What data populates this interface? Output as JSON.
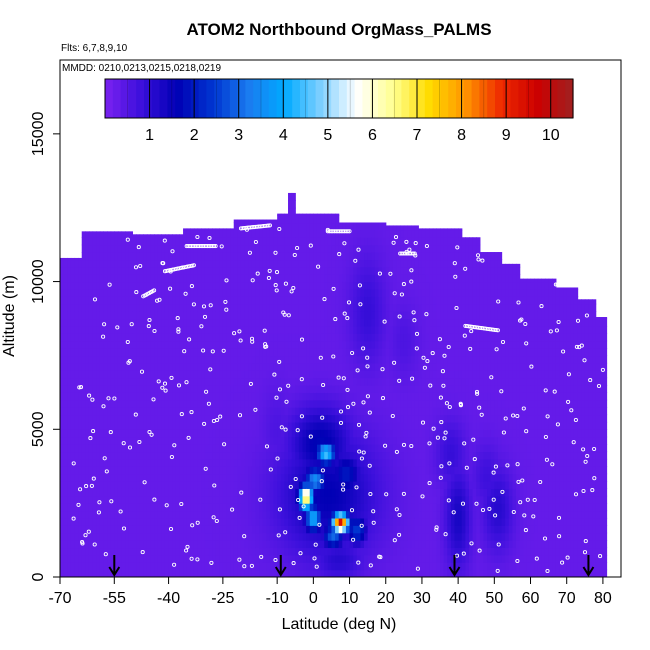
{
  "chart_data": {
    "type": "heatmap",
    "title": "ATOM2 Northbound OrgMass_PALMS",
    "flights_note": "Flts: 6,7,8,9,10",
    "dates_note": "MMDD: 0210,0213,0215,0218,0219",
    "xlabel": "Latitude (deg N)",
    "ylabel": "Altitude (m)",
    "xlim": [
      -70,
      85
    ],
    "ylim": [
      0,
      17500
    ],
    "x_ticks": [
      "-70",
      "-55",
      "-40",
      "-25",
      "-10",
      "0",
      "10",
      "20",
      "30",
      "40",
      "50",
      "60",
      "70",
      "80"
    ],
    "y_ticks": [
      "0",
      "5000",
      "10000",
      "15000"
    ],
    "colorbar": {
      "ticks": [
        "1",
        "2",
        "3",
        "4",
        "5",
        "6",
        "7",
        "8",
        "9",
        "10"
      ],
      "range": [
        0,
        10.5
      ],
      "colors": [
        "#7b22f0",
        "#3c10dc",
        "#0000b4",
        "#0035d0",
        "#1a7cf0",
        "#00aaff",
        "#7fd0ff",
        "#ffffff",
        "#ffff90",
        "#ffdc00",
        "#ff9600",
        "#ee2a00",
        "#cc0000",
        "#a02020"
      ]
    },
    "background_value": 0.3,
    "ceiling": [
      [
        -70,
        10800
      ],
      [
        -64,
        10800
      ],
      [
        -64,
        11700
      ],
      [
        -50,
        11700
      ],
      [
        -50,
        11600
      ],
      [
        -36,
        11600
      ],
      [
        -36,
        11800
      ],
      [
        -22,
        11800
      ],
      [
        -22,
        12100
      ],
      [
        -10,
        12100
      ],
      [
        -10,
        12300
      ],
      [
        -7,
        12300
      ],
      [
        -7,
        13000
      ],
      [
        -5,
        13000
      ],
      [
        -5,
        12300
      ],
      [
        7,
        12300
      ],
      [
        7,
        12000
      ],
      [
        20,
        12000
      ],
      [
        20,
        11900
      ],
      [
        29,
        11900
      ],
      [
        29,
        11800
      ],
      [
        41,
        11800
      ],
      [
        41,
        11500
      ],
      [
        46,
        11500
      ],
      [
        46,
        11000
      ],
      [
        52,
        11000
      ],
      [
        52,
        10600
      ],
      [
        57,
        10600
      ],
      [
        57,
        10100
      ],
      [
        67,
        10100
      ],
      [
        67,
        9800
      ],
      [
        73,
        9800
      ],
      [
        73,
        9400
      ],
      [
        78,
        9400
      ],
      [
        78,
        8800
      ],
      [
        81,
        8800
      ],
      [
        81,
        0
      ]
    ],
    "plumes": [
      {
        "lat": 3.5,
        "alt": 4200,
        "lat_sd": 1.8,
        "alt_sd": 260,
        "value": 4.6
      },
      {
        "lat": 0.5,
        "alt": 3300,
        "lat_sd": 2.0,
        "alt_sd": 300,
        "value": 3.6
      },
      {
        "lat": -2.0,
        "alt": 2700,
        "lat_sd": 1.4,
        "alt_sd": 300,
        "value": 7.2
      },
      {
        "lat": 0.0,
        "alt": 2000,
        "lat_sd": 1.6,
        "alt_sd": 300,
        "value": 4.2
      },
      {
        "lat": 7.5,
        "alt": 1850,
        "lat_sd": 1.6,
        "alt_sd": 220,
        "value": 9.5
      },
      {
        "lat": 5.5,
        "alt": 1400,
        "lat_sd": 2.0,
        "alt_sd": 280,
        "value": 3.0
      },
      {
        "lat": 12.0,
        "alt": 1600,
        "lat_sd": 2.0,
        "alt_sd": 350,
        "value": 2.5
      },
      {
        "lat": 9.0,
        "alt": 3500,
        "lat_sd": 3.0,
        "alt_sd": 500,
        "value": 2.0
      },
      {
        "lat": 2.0,
        "alt": 4500,
        "lat_sd": 6.0,
        "alt_sd": 900,
        "value": 1.7
      },
      {
        "lat": 4.0,
        "alt": 2800,
        "lat_sd": 9.5,
        "alt_sd": 1500,
        "value": 1.6
      },
      {
        "lat": 7.0,
        "alt": 600,
        "lat_sd": 5.0,
        "alt_sd": 500,
        "value": 1.1
      },
      {
        "lat": 40.0,
        "alt": 2000,
        "lat_sd": 2.5,
        "alt_sd": 1200,
        "value": 1.3
      },
      {
        "lat": 38.0,
        "alt": 4200,
        "lat_sd": 3.0,
        "alt_sd": 800,
        "value": 0.9
      },
      {
        "lat": 51.0,
        "alt": 2300,
        "lat_sd": 3.0,
        "alt_sd": 1000,
        "value": 1.1
      },
      {
        "lat": 48.0,
        "alt": 3400,
        "lat_sd": 3.0,
        "alt_sd": 800,
        "value": 0.8
      },
      {
        "lat": 15.0,
        "alt": 9000,
        "lat_sd": 3.5,
        "alt_sd": 1300,
        "value": 0.9
      },
      {
        "lat": 25.0,
        "alt": 8000,
        "lat_sd": 3.0,
        "alt_sd": 900,
        "value": 0.6
      },
      {
        "lat": -10.0,
        "alt": 5000,
        "lat_sd": 3.0,
        "alt_sd": 1000,
        "value": 0.6
      }
    ],
    "arrows_lat": [
      -55,
      -9,
      39,
      76
    ],
    "sample_points": {
      "seed": 19,
      "count": 430,
      "flight_tracks": [
        {
          "lat": [
            -63,
            -62
          ],
          "alt": [
            11800,
            11900
          ]
        },
        {
          "lat": [
            -47,
            -44
          ],
          "alt": [
            9500,
            9700
          ]
        },
        {
          "lat": [
            -41,
            -33
          ],
          "alt": [
            10350,
            10550
          ]
        },
        {
          "lat": [
            -35,
            -27
          ],
          "alt": [
            11200,
            11200
          ]
        },
        {
          "lat": [
            -20,
            -12
          ],
          "alt": [
            11800,
            11900
          ]
        },
        {
          "lat": [
            -17,
            -13
          ],
          "alt": [
            12850,
            12850
          ]
        },
        {
          "lat": [
            4,
            10
          ],
          "alt": [
            11700,
            11700
          ]
        },
        {
          "lat": [
            24,
            28
          ],
          "alt": [
            10950,
            10950
          ]
        },
        {
          "lat": [
            42,
            51
          ],
          "alt": [
            8500,
            8350
          ]
        },
        {
          "lat": [
            67,
            72
          ],
          "alt": [
            9900,
            9900
          ]
        }
      ]
    }
  }
}
